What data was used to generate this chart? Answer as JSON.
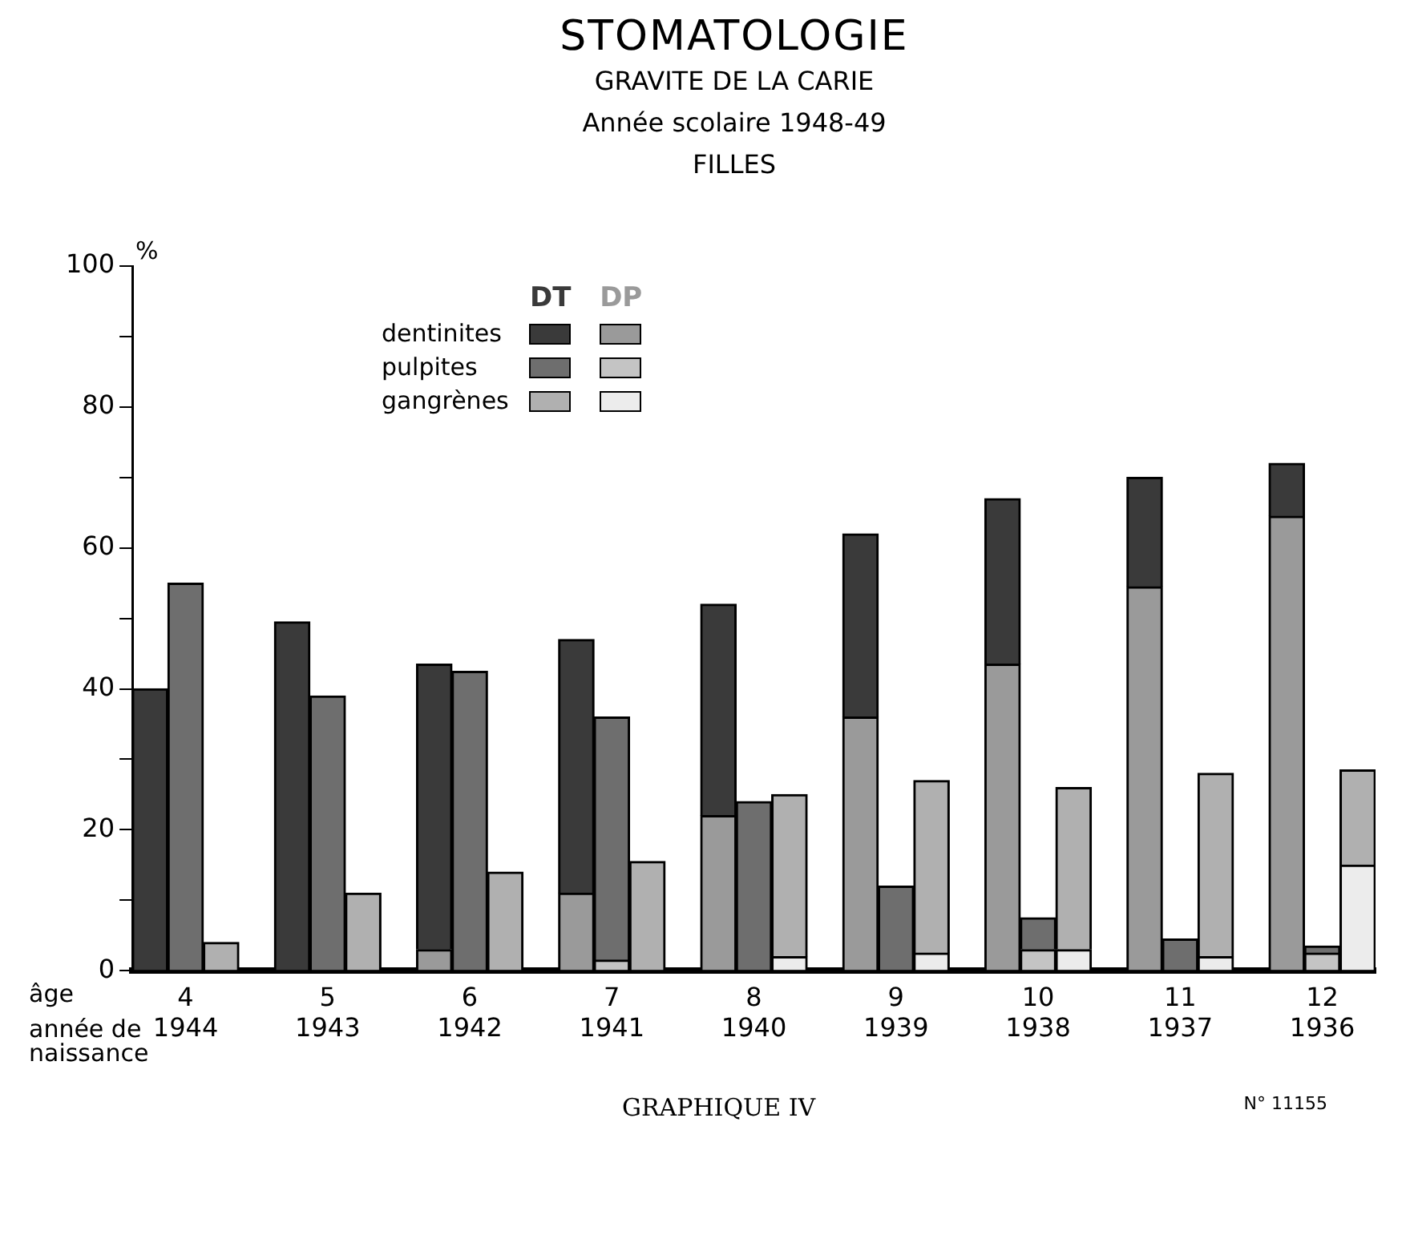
{
  "chart_data": {
    "type": "bar",
    "title": "STOMATOLOGIE",
    "subtitle": "GRAVITE DE LA CARIE\nAnnée scolaire 1948-49\nFILLES",
    "ylabel": "%",
    "categories": [
      null,
      "4\n1944",
      null,
      null,
      null,
      "5\n1943",
      null,
      null,
      null,
      "6\n1942",
      null,
      null,
      null,
      "7\n1941",
      null,
      null,
      null,
      "8\n1940",
      null,
      null,
      null,
      "9\n1939",
      null,
      null,
      null,
      "10\n1938",
      null,
      null,
      null,
      "11\n1937",
      null,
      null,
      null,
      "12\n1936",
      null
    ],
    "stacked": true,
    "grid": false,
    "legend": "top",
    "series": [
      {
        "name": "DP",
        "colors": [
          "#9a9a9a",
          "#c4c4c4",
          "#ececec",
          null,
          "#9a9a9a",
          "#c4c4c4",
          "#ececec",
          null,
          "#9a9a9a",
          "#c4c4c4",
          "#ececec",
          null,
          "#9a9a9a",
          "#c4c4c4",
          "#ececec",
          null,
          "#9a9a9a",
          "#c4c4c4",
          "#ececec",
          null,
          "#9a9a9a",
          "#c4c4c4",
          "#ececec",
          null,
          "#9a9a9a",
          "#c4c4c4",
          "#ececec",
          null,
          "#9a9a9a",
          "#c4c4c4",
          "#ececec",
          null,
          "#9a9a9a",
          "#c4c4c4",
          "#ececec"
        ],
        "values": [
          0,
          0,
          0,
          null,
          0,
          0,
          0,
          null,
          3,
          0,
          0,
          null,
          11,
          1.5,
          0,
          null,
          22,
          0,
          2,
          null,
          36,
          0,
          2.5,
          null,
          43.5,
          3,
          3,
          null,
          54.5,
          0,
          2,
          null,
          64.5,
          2.5,
          15
        ]
      },
      {
        "name": "DT",
        "colors": [
          "#3a3a3a",
          "#6e6e6e",
          "#b0b0b0",
          null,
          "#3a3a3a",
          "#6e6e6e",
          "#b0b0b0",
          null,
          "#3a3a3a",
          "#6e6e6e",
          "#b0b0b0",
          null,
          "#3a3a3a",
          "#6e6e6e",
          "#b0b0b0",
          null,
          "#3a3a3a",
          "#6e6e6e",
          "#b0b0b0",
          null,
          "#3a3a3a",
          "#6e6e6e",
          "#b0b0b0",
          null,
          "#3a3a3a",
          "#6e6e6e",
          "#b0b0b0",
          null,
          "#3a3a3a",
          "#6e6e6e",
          "#b0b0b0",
          null,
          "#3a3a3a",
          "#6e6e6e",
          "#b0b0b0"
        ],
        "values": [
          40,
          55,
          4,
          null,
          49.5,
          39,
          11,
          null,
          40.5,
          42.5,
          14,
          null,
          36,
          34.5,
          15.5,
          null,
          30,
          24,
          23,
          null,
          26,
          12,
          24.5,
          null,
          23.5,
          4.5,
          23,
          null,
          15.5,
          4.5,
          26,
          null,
          7.5,
          1,
          13.5
        ]
      }
    ],
    "ylim": [
      0,
      100
    ],
    "yticks": [
      0,
      {
        "value": 10,
        "label": null
      },
      20,
      {
        "value": 30,
        "label": null
      },
      40,
      {
        "value": 50,
        "label": null
      },
      60,
      {
        "value": 70,
        "label": null
      },
      80,
      {
        "value": 90,
        "label": null
      },
      100
    ],
    "annotations": [
      "dentinites",
      "pulpites",
      "gangrènes",
      "âge",
      "année de\nnaissance",
      "GRAPHIQUE IV",
      "N° 11155"
    ]
  }
}
